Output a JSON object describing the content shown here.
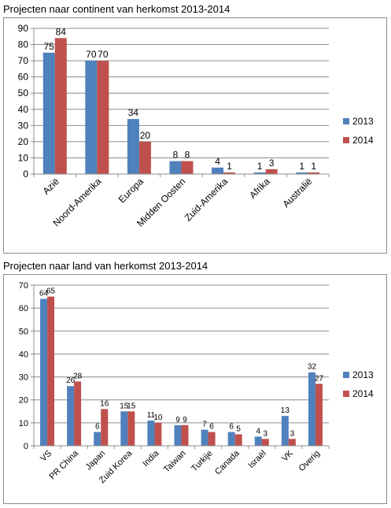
{
  "chart_data": [
    {
      "type": "bar",
      "title": "Projecten naar continent van herkomst 2013-2014",
      "categories": [
        "Azië",
        "Noord-Amerika",
        "Europa",
        "Midden Oosten",
        "Zuid-Amerika",
        "Afrika",
        "Australië"
      ],
      "series": [
        {
          "name": "2013",
          "values": [
            75,
            70,
            34,
            8,
            4,
            1,
            1
          ],
          "color": "#4f81bd"
        },
        {
          "name": "2014",
          "values": [
            84,
            70,
            20,
            8,
            1,
            3,
            1
          ],
          "color": "#c0504d"
        }
      ],
      "ylim": [
        0,
        90
      ],
      "yticks": [
        0,
        10,
        20,
        30,
        40,
        50,
        60,
        70,
        80,
        90
      ],
      "grid": true,
      "legend": "right"
    },
    {
      "type": "bar",
      "title": "Projecten naar land van herkomst 2013-2014",
      "categories": [
        "VS",
        "PR China",
        "Japan",
        "Zuid Korea",
        "India",
        "Taiwan",
        "Turkije",
        "Canada",
        "Israël",
        "VK",
        "Overig"
      ],
      "series": [
        {
          "name": "2013",
          "values": [
            64,
            26,
            6,
            15,
            11,
            9,
            7,
            6,
            4,
            13,
            32
          ],
          "color": "#4f81bd"
        },
        {
          "name": "2014",
          "values": [
            65,
            28,
            16,
            15,
            10,
            9,
            6,
            5,
            3,
            3,
            27
          ],
          "color": "#c0504d"
        }
      ],
      "ylim": [
        0,
        70
      ],
      "yticks": [
        0,
        10,
        20,
        30,
        40,
        50,
        60,
        70
      ],
      "grid": true,
      "legend": "right"
    }
  ]
}
